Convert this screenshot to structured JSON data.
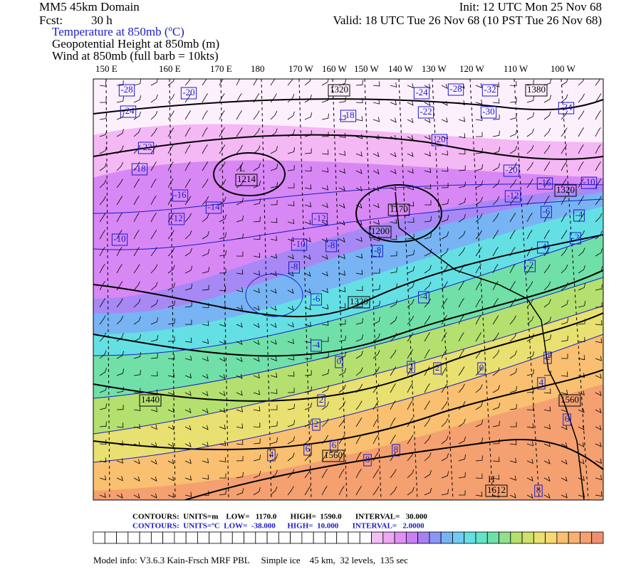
{
  "header": {
    "domain": "MM5 45km Domain",
    "fcst_label": "Fcst:",
    "fcst": "30 h",
    "init": "Init: 12 UTC Mon 25 Nov 68",
    "valid": "Valid: 18 UTC Tue 26 Nov 68 (10 PST Tue 26 Nov 68)",
    "fields": [
      "Temperature at 850mb (ºC)",
      "Geopotential Height at 850mb (m)",
      "Wind at 850mb (full barb = 10kts)"
    ]
  },
  "longitudes": [
    "150 E",
    "160 E",
    "170 E",
    "180",
    "170 W",
    "160 W",
    "150 W",
    "140 W",
    "130 W",
    "120 W",
    "110 W",
    "100 W"
  ],
  "temperature_labels": [
    "-28",
    "-20",
    "-24",
    "-22",
    "-18",
    "-16",
    "-14",
    "-12",
    "-10",
    "-24",
    "-28",
    "-32",
    "-22",
    "-30",
    "-34",
    "-20",
    "-18",
    "-20",
    "-12",
    "-16",
    "-10",
    "-6",
    "-4",
    "-2",
    "-12",
    "-10",
    "-8",
    "-8",
    "-6",
    "-4",
    "-4",
    "-8",
    "-4",
    "-2",
    "0",
    "2",
    "2",
    "0",
    "2",
    "4",
    "2",
    "2",
    "4",
    "6",
    "6",
    "8",
    "8",
    "6",
    "8"
  ],
  "height_labels": [
    "1320",
    "1380",
    "L",
    "1214",
    "1320",
    "1170",
    "1200",
    "1320",
    "1440",
    "1560",
    "1560",
    "H",
    "1612"
  ],
  "contour_info": {
    "height": "CONTOURS:  UNITS=m    LOW=   1170.0       HIGH=  1590.0       INTERVAL=   30.000",
    "temperature": "CONTOURS:  UNITS=ºC  LOW=  -38.000      HIGH=  10.000       INTERVAL=   2.0000"
  },
  "footer": "Model info: V3.6.3 Kain-Frsch MRF PBL     Simple ice    45 km,  32 levels,  135 sec"
}
